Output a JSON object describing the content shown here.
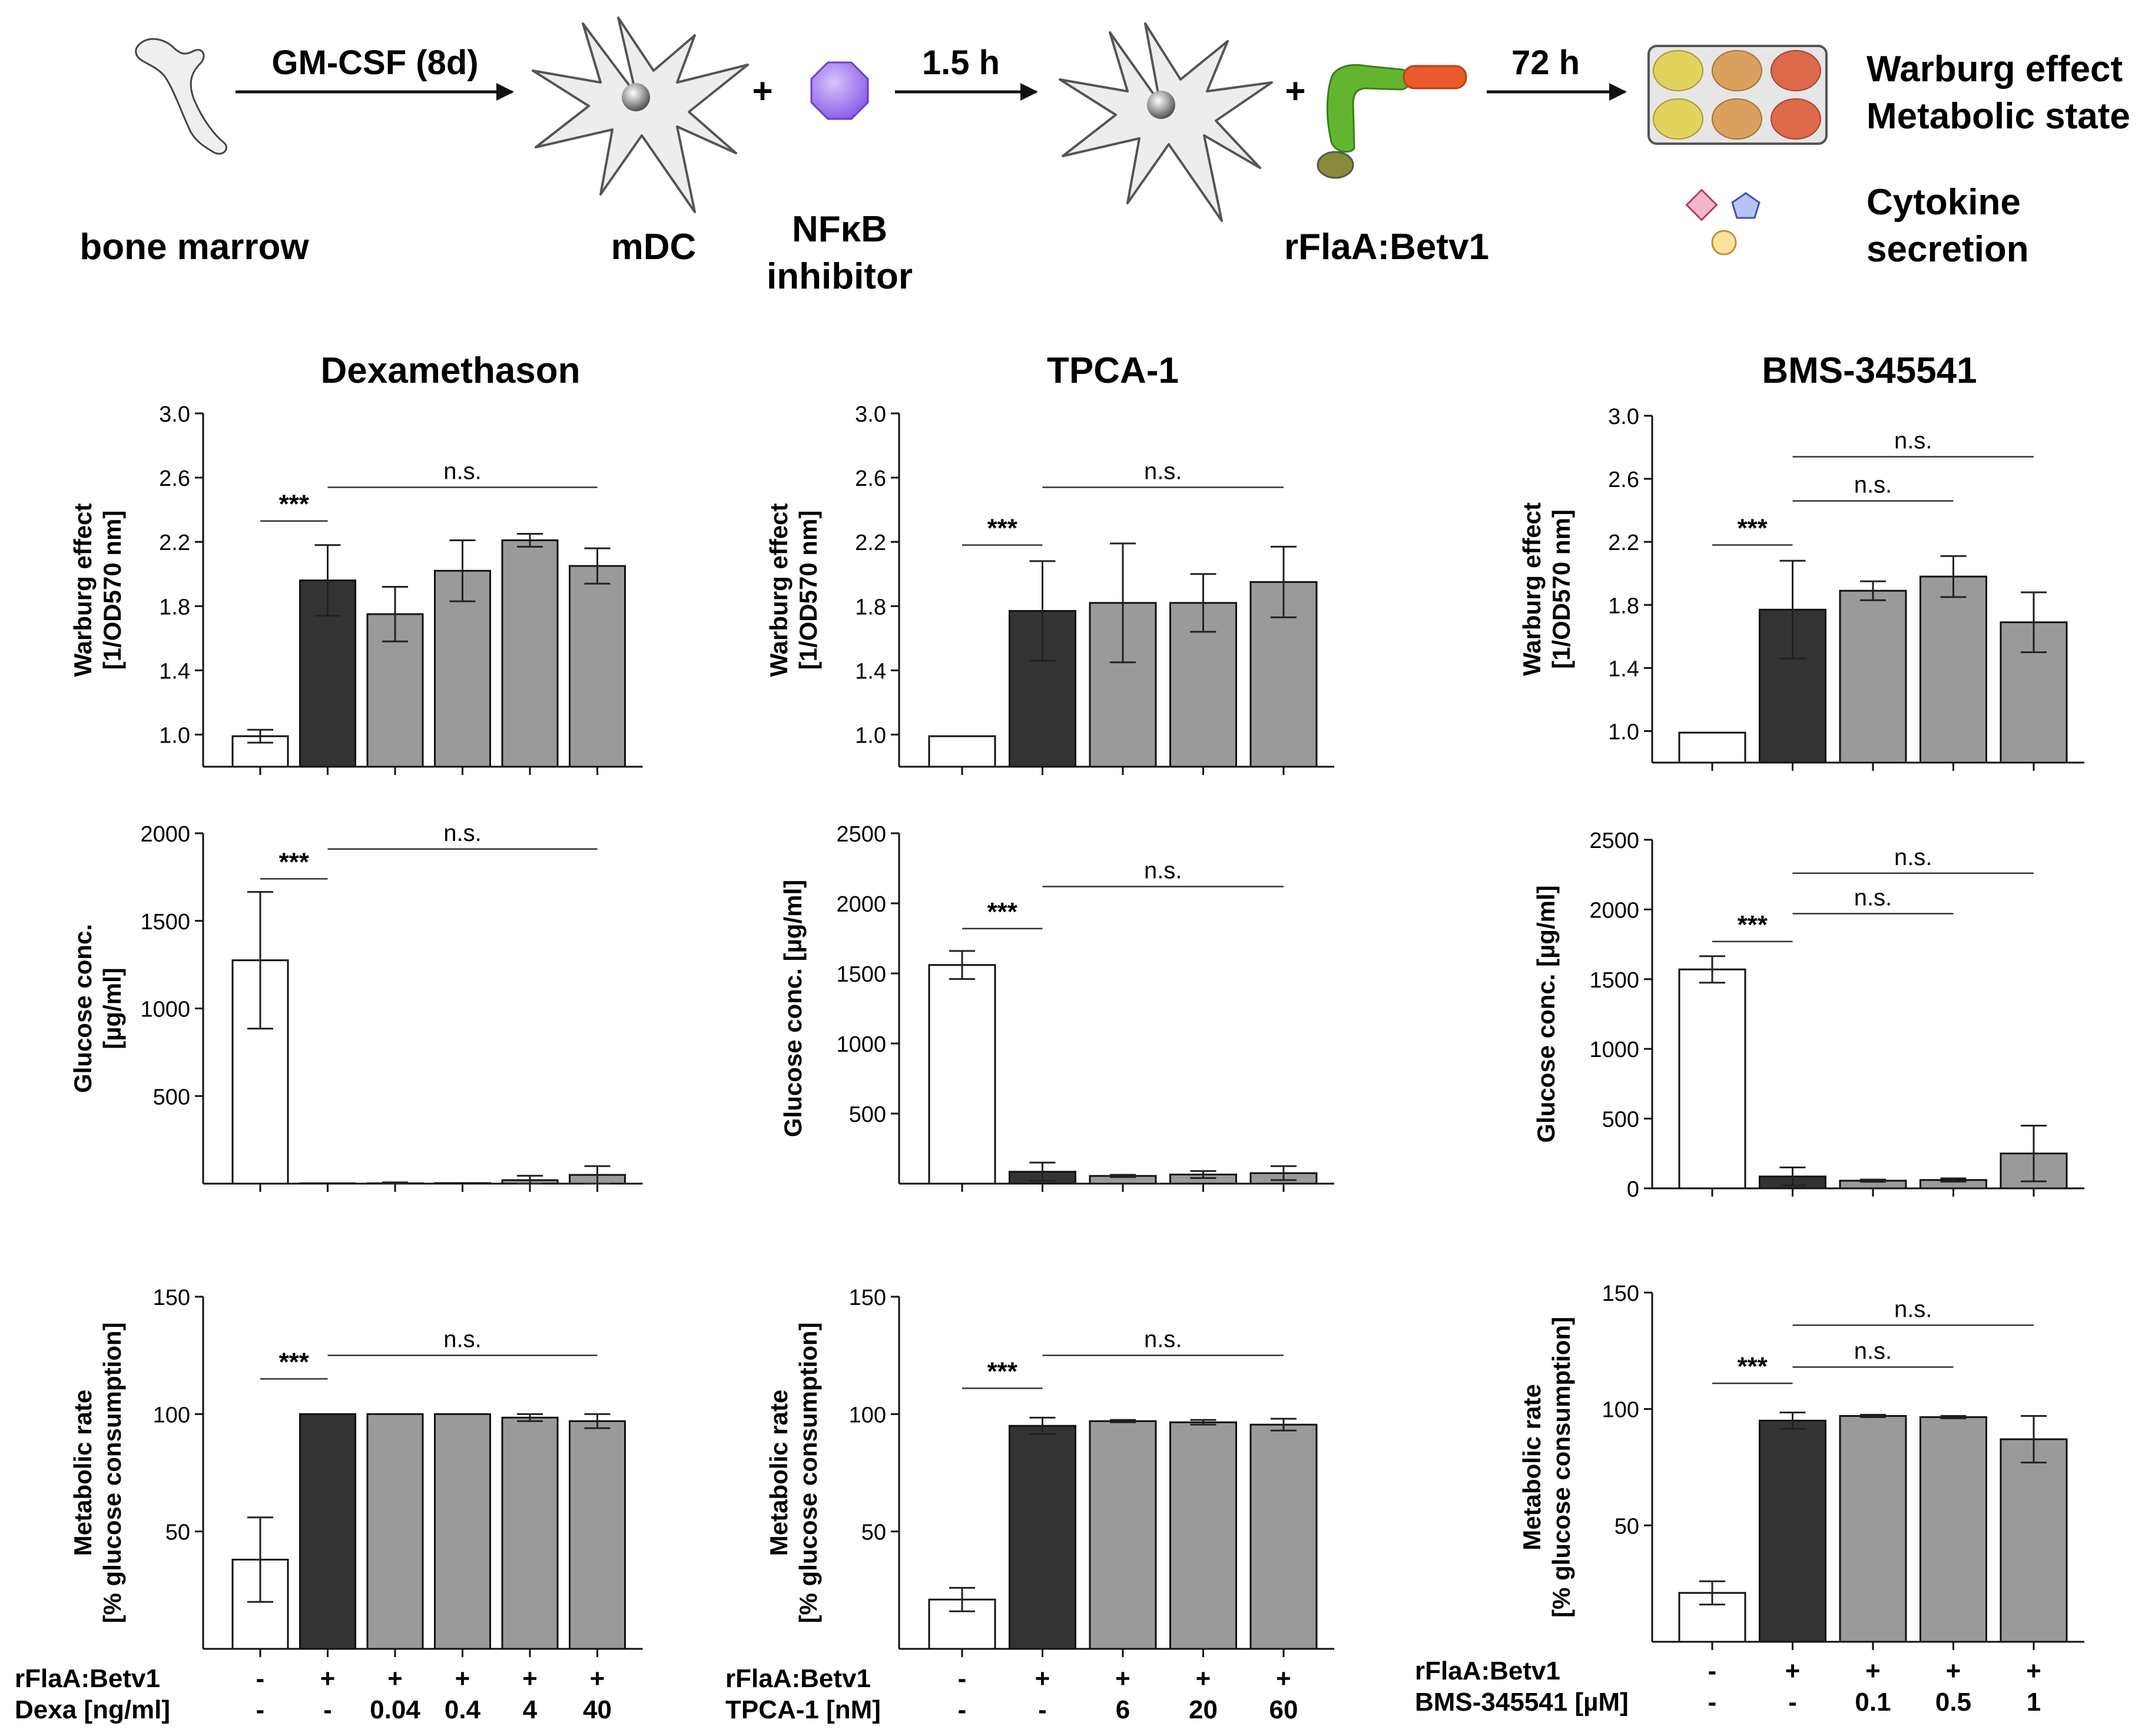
{
  "schema": {
    "labels": {
      "bone_marrow": "bone marrow",
      "step1": "GM-CSF (8d)",
      "mdc": "mDC",
      "inhibitor_line1": "NFκB",
      "inhibitor_line2": "inhibitor",
      "step2": "1.5 h",
      "rflaa": "rFlaA:Betv1",
      "step3": "72 h",
      "out1_line1": "Warburg effect",
      "out1_line2": "Metabolic state",
      "out2_line1": "Cytokine",
      "out2_line2": "secretion",
      "plus": "+"
    },
    "colors": {
      "cell": "#ececec",
      "inhibitor": "#a878ee",
      "flaa": "#5cb82e",
      "betv1": "#ec5a2a",
      "well_yellow": "#e3d460",
      "well_orange": "#d9a060",
      "well_red": "#de6a4a"
    }
  },
  "panels": [
    {
      "title": "Dexamethason",
      "row_label1": "rFlaA:Betv1",
      "row_label2": "Dexa [ng/ml]",
      "row1": [
        "-",
        "+",
        "+",
        "+",
        "+",
        "+"
      ],
      "row2": [
        "-",
        "-",
        "0.04",
        "0.4",
        "4",
        "40"
      ]
    },
    {
      "title": "TPCA-1",
      "row_label1": "rFlaA:Betv1",
      "row_label2": "TPCA-1 [nM]",
      "row1": [
        "-",
        "+",
        "+",
        "+",
        "+"
      ],
      "row2": [
        "-",
        "-",
        "6",
        "20",
        "60"
      ]
    },
    {
      "title": "BMS-345541",
      "row_label1": "rFlaA:Betv1",
      "row_label2": "BMS-345541 [µM]",
      "row1": [
        "-",
        "+",
        "+",
        "+",
        "+"
      ],
      "row2": [
        "-",
        "-",
        "0.1",
        "0.5",
        "1"
      ]
    }
  ],
  "chart_data": [
    {
      "type": "bar",
      "panel": "Dexamethason",
      "ylabel": [
        "Warburg effect",
        "[1/OD570 nm]"
      ],
      "ylim": [
        0.8,
        3.0
      ],
      "yticks": [
        1.0,
        1.4,
        1.8,
        2.2,
        2.6,
        3.0
      ],
      "values": [
        0.99,
        1.96,
        1.75,
        2.02,
        2.21,
        2.05
      ],
      "errors": [
        0.04,
        0.22,
        0.17,
        0.19,
        0.04,
        0.11
      ],
      "colors": [
        "#ffffff",
        "#333333",
        "#9a9a9a",
        "#9a9a9a",
        "#9a9a9a",
        "#9a9a9a"
      ],
      "annotations": [
        {
          "text": "***",
          "from": 0,
          "to": 1,
          "level": 2.33
        },
        {
          "text": "n.s.",
          "from": 1,
          "to": 5,
          "level": 2.54
        }
      ]
    },
    {
      "type": "bar",
      "panel": "TPCA-1",
      "ylabel": [
        "Warburg effect",
        "[1/OD570 nm]"
      ],
      "ylim": [
        0.8,
        3.0
      ],
      "yticks": [
        1.0,
        1.4,
        1.8,
        2.2,
        2.6,
        3.0
      ],
      "values": [
        0.99,
        1.77,
        1.82,
        1.82,
        1.95
      ],
      "errors": [
        0.0,
        0.31,
        0.37,
        0.18,
        0.22
      ],
      "colors": [
        "#ffffff",
        "#333333",
        "#9a9a9a",
        "#9a9a9a",
        "#9a9a9a"
      ],
      "annotations": [
        {
          "text": "***",
          "from": 0,
          "to": 1,
          "level": 2.18
        },
        {
          "text": "n.s.",
          "from": 1,
          "to": 4,
          "level": 2.54
        }
      ]
    },
    {
      "type": "bar",
      "panel": "BMS-345541",
      "ylabel": [
        "Warburg effect",
        "[1/OD570 nm]"
      ],
      "ylim": [
        0.8,
        3.0
      ],
      "yticks": [
        1.0,
        1.4,
        1.8,
        2.2,
        2.6,
        3.0
      ],
      "values": [
        0.99,
        1.77,
        1.89,
        1.98,
        1.69
      ],
      "errors": [
        0.0,
        0.31,
        0.06,
        0.13,
        0.19
      ],
      "colors": [
        "#ffffff",
        "#333333",
        "#9a9a9a",
        "#9a9a9a",
        "#9a9a9a"
      ],
      "annotations": [
        {
          "text": "***",
          "from": 0,
          "to": 1,
          "level": 2.18
        },
        {
          "text": "n.s.",
          "from": 1,
          "to": 3,
          "level": 2.46
        },
        {
          "text": "n.s.",
          "from": 1,
          "to": 4,
          "level": 2.74
        }
      ]
    },
    {
      "type": "bar",
      "panel": "Dexamethason",
      "ylabel": [
        "Glucose conc.",
        "[µg/ml]"
      ],
      "ylim": [
        0,
        2000
      ],
      "yticks": [
        500,
        1000,
        1500,
        2000
      ],
      "values": [
        1275,
        2,
        2,
        3,
        20,
        50
      ],
      "errors": [
        390,
        0,
        5,
        0,
        25,
        50
      ],
      "colors": [
        "#ffffff",
        "#333333",
        "#9a9a9a",
        "#9a9a9a",
        "#9a9a9a",
        "#9a9a9a"
      ],
      "annotations": [
        {
          "text": "***",
          "from": 0,
          "to": 1,
          "level": 1740
        },
        {
          "text": "n.s.",
          "from": 1,
          "to": 5,
          "level": 1910
        }
      ]
    },
    {
      "type": "bar",
      "panel": "TPCA-1",
      "ylabel": [
        "Glucose conc. [µg/ml]"
      ],
      "ylim": [
        0,
        2500
      ],
      "yticks": [
        500,
        1000,
        1500,
        2000,
        2500
      ],
      "values": [
        1560,
        85,
        55,
        65,
        75
      ],
      "errors": [
        100,
        65,
        8,
        25,
        50
      ],
      "colors": [
        "#ffffff",
        "#333333",
        "#9a9a9a",
        "#9a9a9a",
        "#9a9a9a"
      ],
      "annotations": [
        {
          "text": "***",
          "from": 0,
          "to": 1,
          "level": 1820
        },
        {
          "text": "n.s.",
          "from": 1,
          "to": 4,
          "level": 2120
        }
      ]
    },
    {
      "type": "bar",
      "panel": "BMS-345541",
      "ylabel": [
        "Glucose conc. [µg/ml]"
      ],
      "ylim": [
        0,
        2500
      ],
      "yticks": [
        0,
        500,
        1000,
        1500,
        2000,
        2500
      ],
      "values": [
        1570,
        85,
        55,
        60,
        250
      ],
      "errors": [
        95,
        65,
        8,
        12,
        200
      ],
      "colors": [
        "#ffffff",
        "#333333",
        "#9a9a9a",
        "#9a9a9a",
        "#9a9a9a"
      ],
      "annotations": [
        {
          "text": "***",
          "from": 0,
          "to": 1,
          "level": 1770
        },
        {
          "text": "n.s.",
          "from": 1,
          "to": 3,
          "level": 1970
        },
        {
          "text": "n.s.",
          "from": 1,
          "to": 4,
          "level": 2260
        }
      ]
    },
    {
      "type": "bar",
      "panel": "Dexamethason",
      "ylabel": [
        "Metabolic rate",
        "[% glucose consumption]"
      ],
      "ylim": [
        0,
        150
      ],
      "yticks": [
        50,
        100,
        150
      ],
      "values": [
        38,
        100,
        100,
        100,
        98.5,
        97
      ],
      "errors": [
        18,
        0,
        0,
        0,
        1.5,
        3
      ],
      "colors": [
        "#ffffff",
        "#333333",
        "#9a9a9a",
        "#9a9a9a",
        "#9a9a9a",
        "#9a9a9a"
      ],
      "annotations": [
        {
          "text": "***",
          "from": 0,
          "to": 1,
          "level": 115
        },
        {
          "text": "n.s.",
          "from": 1,
          "to": 5,
          "level": 125
        }
      ]
    },
    {
      "type": "bar",
      "panel": "TPCA-1",
      "ylabel": [
        "Metabolic rate",
        "[% glucose consumption]"
      ],
      "ylim": [
        0,
        150
      ],
      "yticks": [
        50,
        100,
        150
      ],
      "values": [
        21,
        95,
        97,
        96.5,
        95.5
      ],
      "errors": [
        5,
        3.5,
        0.5,
        1,
        2.5
      ],
      "colors": [
        "#ffffff",
        "#333333",
        "#9a9a9a",
        "#9a9a9a",
        "#9a9a9a"
      ],
      "annotations": [
        {
          "text": "***",
          "from": 0,
          "to": 1,
          "level": 111
        },
        {
          "text": "n.s.",
          "from": 1,
          "to": 4,
          "level": 125
        }
      ]
    },
    {
      "type": "bar",
      "panel": "BMS-345541",
      "ylabel": [
        "Metabolic rate",
        "[% glucose consumption]"
      ],
      "ylim": [
        0,
        150
      ],
      "yticks": [
        50,
        100,
        150
      ],
      "values": [
        21,
        95,
        97,
        96.5,
        87
      ],
      "errors": [
        5,
        3.5,
        0.5,
        0.5,
        10
      ],
      "colors": [
        "#ffffff",
        "#333333",
        "#9a9a9a",
        "#9a9a9a",
        "#9a9a9a"
      ],
      "annotations": [
        {
          "text": "***",
          "from": 0,
          "to": 1,
          "level": 111
        },
        {
          "text": "n.s.",
          "from": 1,
          "to": 3,
          "level": 118
        },
        {
          "text": "n.s.",
          "from": 1,
          "to": 4,
          "level": 136
        }
      ]
    }
  ]
}
